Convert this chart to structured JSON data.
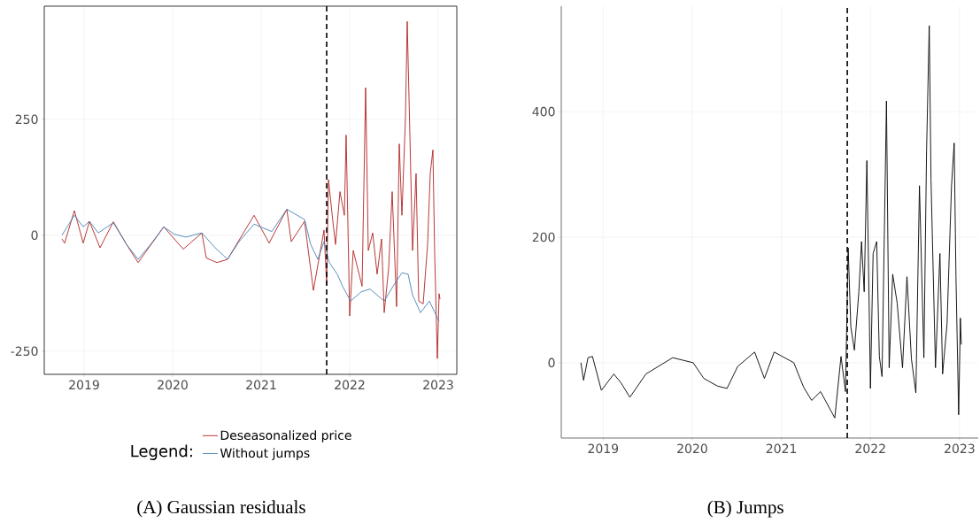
{
  "chart_data": [
    {
      "type": "line",
      "legend_title": "Legend:",
      "legend": "bottom",
      "grid": true,
      "xlim": [
        2018.55,
        2023.21
      ],
      "xticks": [
        2019,
        2020,
        2021,
        2022,
        2023
      ],
      "ylim": [
        -300,
        494
      ],
      "yticks": [
        -250,
        0,
        250
      ],
      "ref_lines": [
        {
          "axis": "x",
          "value": 2021.74,
          "line_style": "dashed",
          "color": "#000000"
        }
      ],
      "annotations": [
        "(A) Gaussian residuals"
      ],
      "series": [
        {
          "name": "Deseasonalized price",
          "color": "#b22222",
          "x": [
            2018.75,
            2018.78,
            2018.89,
            2018.99,
            2019.06,
            2019.18,
            2019.33,
            2019.48,
            2019.61,
            2019.9,
            2020.12,
            2020.33,
            2020.38,
            2020.5,
            2020.62,
            2020.92,
            2021.09,
            2021.29,
            2021.34,
            2021.49,
            2021.59,
            2021.71,
            2021.74,
            2021.76,
            2021.81,
            2021.84,
            2021.89,
            2021.94,
            2021.96,
            2022.0,
            2022.04,
            2022.09,
            2022.14,
            2022.18,
            2022.21,
            2022.26,
            2022.31,
            2022.36,
            2022.39,
            2022.44,
            2022.48,
            2022.53,
            2022.56,
            2022.59,
            2022.63,
            2022.65,
            2022.68,
            2022.71,
            2022.75,
            2022.78,
            2022.83,
            2022.88,
            2022.91,
            2022.94,
            2022.96,
            2022.99,
            2023.01,
            2023.02
          ],
          "values": [
            -8,
            -17,
            53,
            -17,
            30,
            -27,
            29,
            -20,
            -59,
            18,
            -30,
            5,
            -49,
            -59,
            -52,
            43,
            -17,
            56,
            -14,
            30,
            -119,
            11,
            -107,
            120,
            30,
            -20,
            94,
            43,
            216,
            -174,
            -33,
            -71,
            -110,
            318,
            -33,
            5,
            -84,
            -8,
            -167,
            -71,
            94,
            -154,
            197,
            43,
            254,
            461,
            216,
            -33,
            133,
            -142,
            -148,
            -20,
            133,
            184,
            -40,
            -266,
            -126,
            -138
          ]
        },
        {
          "name": "Without jumps",
          "color": "#4682b4",
          "x": [
            2018.75,
            2018.89,
            2018.99,
            2019.06,
            2019.16,
            2019.33,
            2019.48,
            2019.61,
            2019.75,
            2019.9,
            2020.02,
            2020.15,
            2020.33,
            2020.48,
            2020.62,
            2020.75,
            2020.92,
            2021.12,
            2021.29,
            2021.49,
            2021.56,
            2021.64,
            2021.71,
            2021.77,
            2021.86,
            2021.92,
            2022.01,
            2022.13,
            2022.23,
            2022.39,
            2022.49,
            2022.59,
            2022.66,
            2022.71,
            2022.8,
            2022.9,
            2023.01
          ],
          "values": [
            0,
            43,
            18,
            30,
            5,
            27,
            -20,
            -52,
            -20,
            18,
            2,
            -4,
            5,
            -27,
            -52,
            -14,
            24,
            8,
            56,
            34,
            -20,
            -52,
            -14,
            -59,
            -84,
            -110,
            -142,
            -122,
            -116,
            -142,
            -110,
            -81,
            -84,
            -129,
            -167,
            -142,
            -186
          ]
        }
      ]
    },
    {
      "type": "line",
      "grid": true,
      "xlim": [
        2018.53,
        2023.21
      ],
      "xticks": [
        2019,
        2020,
        2021,
        2022,
        2023
      ],
      "ylim": [
        -120,
        568
      ],
      "yticks": [
        0,
        200,
        400
      ],
      "ref_lines": [
        {
          "axis": "x",
          "value": 2021.74,
          "line_style": "dashed",
          "color": "#000000"
        }
      ],
      "annotations": [
        "(B) Jumps"
      ],
      "series": [
        {
          "color": "#000000",
          "x": [
            2018.75,
            2018.78,
            2018.83,
            2018.88,
            2018.98,
            2019.12,
            2019.2,
            2019.3,
            2019.48,
            2019.78,
            2020.01,
            2020.13,
            2020.28,
            2020.39,
            2020.51,
            2020.7,
            2020.81,
            2020.92,
            2021.14,
            2021.25,
            2021.34,
            2021.44,
            2021.6,
            2021.67,
            2021.72,
            2021.75,
            2021.78,
            2021.82,
            2021.87,
            2021.9,
            2021.93,
            2021.96,
            2022.0,
            2022.03,
            2022.07,
            2022.1,
            2022.13,
            2022.18,
            2022.21,
            2022.25,
            2022.3,
            2022.36,
            2022.41,
            2022.46,
            2022.51,
            2022.55,
            2022.6,
            2022.63,
            2022.66,
            2022.68,
            2022.73,
            2022.78,
            2022.81,
            2022.86,
            2022.91,
            2022.94,
            2022.96,
            2022.99,
            2023.01,
            2023.02
          ],
          "values": [
            0,
            -28,
            8,
            10,
            -44,
            -18,
            -32,
            -55,
            -18,
            8,
            0,
            -25,
            -37,
            -41,
            -6,
            17,
            -25,
            17,
            0,
            -39,
            -60,
            -46,
            -88,
            10,
            -46,
            183,
            57,
            20,
            113,
            193,
            113,
            322,
            -41,
            174,
            193,
            10,
            -22,
            417,
            -8,
            141,
            95,
            -8,
            137,
            6,
            -48,
            282,
            8,
            338,
            537,
            291,
            -8,
            174,
            -18,
            62,
            282,
            350,
            137,
            -83,
            71,
            29
          ]
        }
      ]
    }
  ]
}
